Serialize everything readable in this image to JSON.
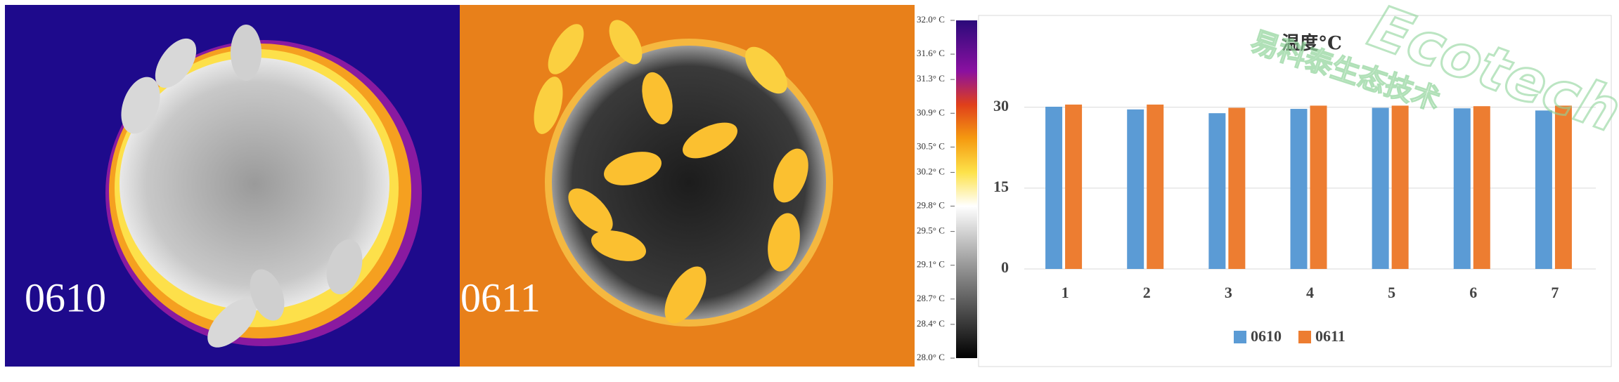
{
  "thermal_images": [
    {
      "label": "0610"
    },
    {
      "label": "0611"
    }
  ],
  "colorbar": {
    "lim": [
      28.0,
      32.0
    ],
    "ticks": [
      {
        "value": 32.0,
        "label": "32.0° C"
      },
      {
        "value": 31.6,
        "label": "31.6° C"
      },
      {
        "value": 31.3,
        "label": "31.3° C"
      },
      {
        "value": 30.9,
        "label": "30.9° C"
      },
      {
        "value": 30.5,
        "label": "30.5° C"
      },
      {
        "value": 30.2,
        "label": "30.2° C"
      },
      {
        "value": 29.8,
        "label": "29.8° C"
      },
      {
        "value": 29.5,
        "label": "29.5° C"
      },
      {
        "value": 29.1,
        "label": "29.1° C"
      },
      {
        "value": 28.7,
        "label": "28.7° C"
      },
      {
        "value": 28.4,
        "label": "28.4° C"
      },
      {
        "value": 28.0,
        "label": "28.0° C"
      }
    ]
  },
  "watermarks": [
    "易科泰生态技术",
    "Ecotech"
  ],
  "chart_data": {
    "type": "bar",
    "title": "温度°C",
    "categories": [
      "1",
      "2",
      "3",
      "4",
      "5",
      "6",
      "7"
    ],
    "series": [
      {
        "name": "0610",
        "color": "#5b9bd5",
        "values": [
          30.1,
          29.6,
          28.9,
          29.7,
          29.9,
          29.8,
          29.4
        ]
      },
      {
        "name": "0611",
        "color": "#ed7d31",
        "values": [
          30.5,
          30.5,
          29.9,
          30.3,
          30.3,
          30.2,
          30.3
        ]
      }
    ],
    "ylim": [
      0,
      40
    ],
    "yticks": [
      0,
      15,
      30
    ],
    "grid": true,
    "legend": "bottom"
  }
}
